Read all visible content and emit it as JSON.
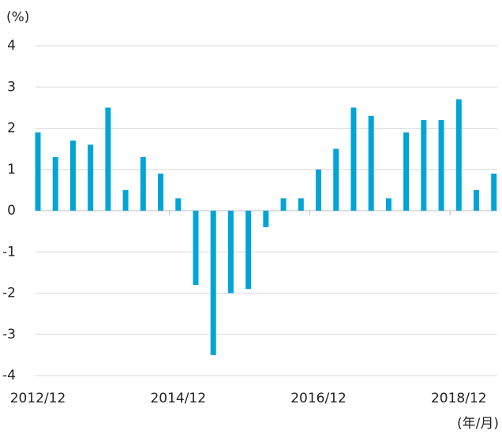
{
  "chart_data": {
    "type": "bar",
    "y_label": "(%)",
    "x_label": "(年/月)",
    "categories": [
      "2012/12",
      null,
      null,
      null,
      null,
      null,
      null,
      null,
      "2014/12",
      null,
      null,
      null,
      null,
      null,
      null,
      null,
      "2016/12",
      null,
      null,
      null,
      null,
      null,
      null,
      null,
      "2018/12",
      null,
      null
    ],
    "values": [
      1.9,
      1.3,
      1.7,
      1.6,
      2.5,
      0.5,
      1.3,
      0.9,
      0.3,
      -1.8,
      -3.5,
      -2.0,
      -1.9,
      -0.4,
      0.3,
      0.3,
      1.0,
      1.5,
      2.5,
      2.3,
      0.3,
      1.9,
      2.2,
      2.2,
      2.7,
      0.5,
      0.9
    ],
    "color": "#00a5d6",
    "ylim": [
      -4,
      4
    ],
    "yticks": [
      -4,
      -3,
      -2,
      -1,
      0,
      1,
      2,
      3,
      4
    ],
    "grid": true
  }
}
